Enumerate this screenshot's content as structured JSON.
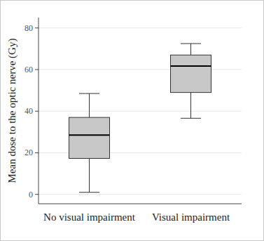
{
  "chart_data": {
    "type": "box",
    "y_label": "Mean dose to the optic nerve (Gy)",
    "categories": [
      "No visual impairment",
      "Visual impairment"
    ],
    "min": [
      1,
      36.6
    ],
    "q1": [
      17.3,
      49
    ],
    "median": [
      28.5,
      61.7
    ],
    "q3": [
      37,
      67
    ],
    "max": [
      48.5,
      72.5
    ],
    "color": "#c8c8c8",
    "ylim": [
      -4.5,
      85
    ],
    "yticks": [
      0,
      20,
      40,
      60,
      80
    ],
    "grid": true
  }
}
